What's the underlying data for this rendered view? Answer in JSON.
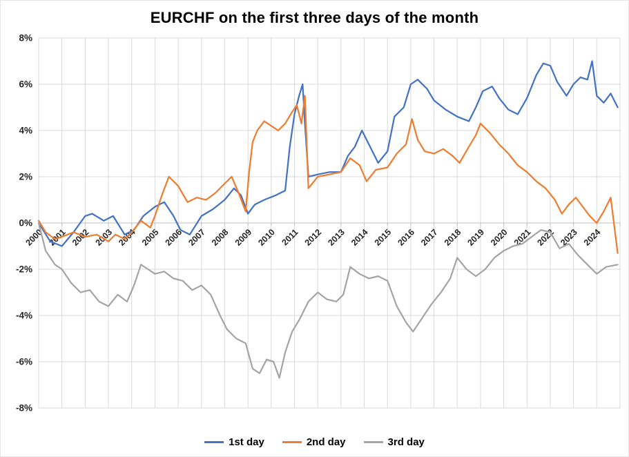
{
  "page": {
    "background": "#ffffff"
  },
  "chart": {
    "title": "EURCHF on the first three days of the month",
    "legend": [
      {
        "label": "1st day",
        "color": "#4472C4"
      },
      {
        "label": "2nd day",
        "color": "#ED7D31"
      },
      {
        "label": "3rd day",
        "color": "#A5A5A5"
      }
    ],
    "grid_color": "#D9D9D9",
    "axis_color": "#BFBFBF",
    "tick_label_color": "#262626"
  },
  "chart_data": {
    "type": "line",
    "title": "EURCHF on the first three days of the month",
    "xlabel": "",
    "ylabel": "",
    "x_domain": [
      2000,
      2025
    ],
    "ylim": [
      -8,
      8
    ],
    "y_ticks": [
      8,
      6,
      4,
      2,
      0,
      -2,
      -4,
      -6,
      -8
    ],
    "y_tick_suffix": "%",
    "x_ticks": [
      2000,
      2001,
      2002,
      2003,
      2004,
      2005,
      2006,
      2007,
      2008,
      2009,
      2010,
      2011,
      2012,
      2013,
      2014,
      2015,
      2016,
      2017,
      2018,
      2019,
      2020,
      2021,
      2022,
      2023,
      2024
    ],
    "grid": true,
    "legend_position": "bottom",
    "unit": "percent",
    "series": [
      {
        "name": "1st day",
        "color": "#4472C4",
        "x": [
          2000.0,
          2000.5,
          2001.0,
          2001.5,
          2002.0,
          2002.3,
          2002.8,
          2003.2,
          2003.7,
          2004.1,
          2004.5,
          2005.0,
          2005.4,
          2005.8,
          2006.1,
          2006.5,
          2007.0,
          2007.5,
          2008.0,
          2008.4,
          2008.7,
          2009.0,
          2009.3,
          2009.7,
          2010.2,
          2010.6,
          2010.8,
          2011.0,
          2011.2,
          2011.35,
          2011.45,
          2011.6,
          2012.0,
          2012.5,
          2013.0,
          2013.3,
          2013.6,
          2013.9,
          2014.2,
          2014.6,
          2015.0,
          2015.3,
          2015.7,
          2016.0,
          2016.3,
          2016.7,
          2017.0,
          2017.5,
          2018.0,
          2018.5,
          2018.8,
          2019.1,
          2019.5,
          2019.8,
          2020.2,
          2020.6,
          2021.0,
          2021.4,
          2021.7,
          2022.0,
          2022.3,
          2022.7,
          2023.0,
          2023.3,
          2023.6,
          2023.8,
          2024.0,
          2024.3,
          2024.6,
          2024.9
        ],
        "values": [
          0.0,
          -0.8,
          -1.0,
          -0.4,
          0.3,
          0.4,
          0.1,
          0.3,
          -0.5,
          -0.3,
          0.3,
          0.7,
          0.9,
          0.3,
          -0.3,
          -0.5,
          0.3,
          0.6,
          1.0,
          1.5,
          1.2,
          0.4,
          0.8,
          1.0,
          1.2,
          1.4,
          3.3,
          4.7,
          5.5,
          6.0,
          4.3,
          2.0,
          2.1,
          2.2,
          2.2,
          2.9,
          3.3,
          4.0,
          3.4,
          2.6,
          3.1,
          4.6,
          5.0,
          6.0,
          6.2,
          5.8,
          5.3,
          4.9,
          4.6,
          4.4,
          5.0,
          5.7,
          5.9,
          5.4,
          4.9,
          4.7,
          5.4,
          6.4,
          6.9,
          6.8,
          6.1,
          5.5,
          6.0,
          6.3,
          6.2,
          7.0,
          5.5,
          5.2,
          5.6,
          5.0
        ]
      },
      {
        "name": "2nd day",
        "color": "#ED7D31",
        "x": [
          2000.0,
          2000.3,
          2000.7,
          2001.0,
          2001.5,
          2002.0,
          2002.5,
          2003.0,
          2003.3,
          2003.7,
          2004.0,
          2004.4,
          2004.8,
          2005.0,
          2005.3,
          2005.6,
          2006.0,
          2006.4,
          2006.8,
          2007.2,
          2007.6,
          2008.0,
          2008.3,
          2008.6,
          2008.9,
          2009.05,
          2009.2,
          2009.4,
          2009.7,
          2010.0,
          2010.3,
          2010.6,
          2010.9,
          2011.1,
          2011.3,
          2011.45,
          2011.6,
          2012.0,
          2012.5,
          2013.0,
          2013.4,
          2013.8,
          2014.1,
          2014.5,
          2015.0,
          2015.4,
          2015.8,
          2016.05,
          2016.3,
          2016.6,
          2017.0,
          2017.4,
          2017.8,
          2018.1,
          2018.5,
          2018.8,
          2019.0,
          2019.4,
          2019.8,
          2020.2,
          2020.6,
          2021.0,
          2021.4,
          2021.8,
          2022.2,
          2022.5,
          2022.8,
          2023.1,
          2023.4,
          2023.7,
          2024.0,
          2024.3,
          2024.6,
          2024.9
        ],
        "values": [
          0.1,
          -0.4,
          -0.7,
          -0.6,
          -0.4,
          -0.6,
          -0.5,
          -0.8,
          -0.5,
          -0.7,
          -0.4,
          0.1,
          -0.2,
          0.3,
          1.2,
          2.0,
          1.6,
          0.9,
          1.1,
          1.0,
          1.3,
          1.7,
          2.0,
          1.3,
          0.5,
          2.2,
          3.5,
          4.0,
          4.4,
          4.2,
          4.0,
          4.3,
          4.8,
          5.1,
          4.3,
          5.5,
          1.5,
          2.0,
          2.1,
          2.2,
          2.8,
          2.5,
          1.8,
          2.3,
          2.4,
          3.0,
          3.4,
          4.5,
          3.6,
          3.1,
          3.0,
          3.2,
          2.9,
          2.6,
          3.3,
          3.8,
          4.3,
          3.9,
          3.4,
          3.0,
          2.5,
          2.2,
          1.8,
          1.5,
          1.0,
          0.4,
          0.8,
          1.1,
          0.7,
          0.3,
          0.0,
          0.5,
          1.1,
          -1.3
        ]
      },
      {
        "name": "3rd day",
        "color": "#A5A5A5",
        "x": [
          2000.0,
          2000.3,
          2000.7,
          2001.0,
          2001.4,
          2001.8,
          2002.2,
          2002.6,
          2003.0,
          2003.4,
          2003.8,
          2004.1,
          2004.4,
          2004.7,
          2005.0,
          2005.4,
          2005.8,
          2006.2,
          2006.6,
          2007.0,
          2007.4,
          2007.8,
          2008.1,
          2008.5,
          2008.9,
          2009.2,
          2009.5,
          2009.8,
          2010.1,
          2010.35,
          2010.6,
          2010.9,
          2011.2,
          2011.6,
          2012.0,
          2012.4,
          2012.8,
          2013.1,
          2013.4,
          2013.8,
          2014.2,
          2014.6,
          2015.0,
          2015.4,
          2015.8,
          2016.1,
          2016.5,
          2016.9,
          2017.3,
          2017.7,
          2018.0,
          2018.4,
          2018.8,
          2019.2,
          2019.6,
          2020.0,
          2020.4,
          2020.8,
          2021.2,
          2021.6,
          2022.0,
          2022.4,
          2022.8,
          2023.2,
          2023.6,
          2024.0,
          2024.4,
          2024.9
        ],
        "values": [
          0.0,
          -1.2,
          -1.8,
          -2.0,
          -2.6,
          -3.0,
          -2.9,
          -3.4,
          -3.6,
          -3.1,
          -3.4,
          -2.7,
          -1.8,
          -2.0,
          -2.2,
          -2.1,
          -2.4,
          -2.5,
          -2.9,
          -2.7,
          -3.1,
          -4.0,
          -4.6,
          -5.0,
          -5.2,
          -6.3,
          -6.5,
          -5.9,
          -6.0,
          -6.7,
          -5.6,
          -4.7,
          -4.2,
          -3.4,
          -3.0,
          -3.3,
          -3.4,
          -3.1,
          -1.9,
          -2.2,
          -2.4,
          -2.3,
          -2.5,
          -3.6,
          -4.3,
          -4.7,
          -4.1,
          -3.5,
          -3.0,
          -2.4,
          -1.5,
          -2.0,
          -2.3,
          -2.0,
          -1.5,
          -1.2,
          -1.0,
          -0.9,
          -0.6,
          -0.3,
          -0.4,
          -1.1,
          -0.9,
          -1.4,
          -1.8,
          -2.2,
          -1.9,
          -1.8
        ]
      }
    ]
  }
}
